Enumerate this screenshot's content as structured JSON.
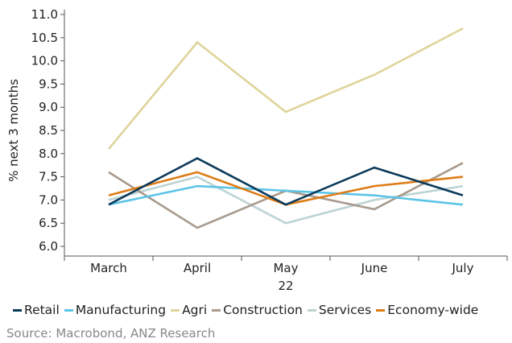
{
  "chart_data": {
    "type": "line",
    "categories": [
      "March",
      "April",
      "May",
      "June",
      "July"
    ],
    "x_group_label": "22",
    "x_group_label_under": "May",
    "ylabel": "% next 3 months",
    "ylim": [
      6.0,
      11.0
    ],
    "yticks": [
      "6.0",
      "6.5",
      "7.0",
      "7.5",
      "8.0",
      "8.5",
      "9.0",
      "9.5",
      "10.0",
      "10.5",
      "11.0"
    ],
    "series": [
      {
        "name": "Retail",
        "color": "#0b3a5a",
        "values": [
          6.9,
          7.9,
          6.9,
          7.7,
          7.1
        ]
      },
      {
        "name": "Manufacturing",
        "color": "#5bc4e6",
        "values": [
          6.9,
          7.3,
          7.2,
          7.1,
          6.9
        ]
      },
      {
        "name": "Agri",
        "color": "#dfd49a",
        "values": [
          8.1,
          10.4,
          8.9,
          9.7,
          10.7
        ]
      },
      {
        "name": "Construction",
        "color": "#a89a8d",
        "values": [
          7.6,
          6.4,
          7.2,
          6.8,
          7.8
        ]
      },
      {
        "name": "Services",
        "color": "#bcd3d3",
        "values": [
          7.0,
          7.5,
          6.5,
          7.0,
          7.3
        ]
      },
      {
        "name": "Economy-wide",
        "color": "#de7c16",
        "values": [
          7.1,
          7.6,
          6.9,
          7.3,
          7.5
        ]
      }
    ],
    "grid": false,
    "legend_position": "bottom"
  },
  "source": "Source: Macrobond, ANZ Research"
}
